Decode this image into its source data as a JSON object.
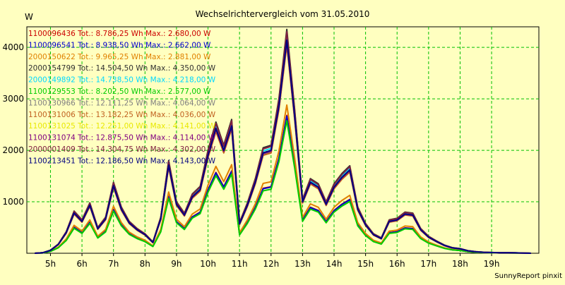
{
  "chart_data": {
    "type": "line",
    "title": "Wechselrichtervergleich vom 31.05.2010",
    "ylabel": "W",
    "xlabel": "",
    "footer": "SunnyReport pinxit",
    "ylim": [
      0,
      4400
    ],
    "yticks": [
      1000,
      2000,
      3000,
      4000
    ],
    "xlim": [
      4.25,
      20.5
    ],
    "xticks": [
      {
        "value": 5,
        "label": "5h"
      },
      {
        "value": 6,
        "label": "6h"
      },
      {
        "value": 7,
        "label": "7h"
      },
      {
        "value": 8,
        "label": "8h"
      },
      {
        "value": 9,
        "label": "9h"
      },
      {
        "value": 10,
        "label": "10h"
      },
      {
        "value": 11,
        "label": "11h"
      },
      {
        "value": 12,
        "label": "12h"
      },
      {
        "value": 13,
        "label": "13h"
      },
      {
        "value": 14,
        "label": "14h"
      },
      {
        "value": 15,
        "label": "15h"
      },
      {
        "value": 16,
        "label": "16h"
      },
      {
        "value": 17,
        "label": "17h"
      },
      {
        "value": 18,
        "label": "18h"
      },
      {
        "value": 19,
        "label": "19h"
      }
    ],
    "grid": true,
    "legend_position": "top-left",
    "x": [
      4.5,
      4.75,
      5,
      5.25,
      5.5,
      5.75,
      6,
      6.25,
      6.5,
      6.75,
      7,
      7.25,
      7.5,
      7.75,
      8,
      8.25,
      8.5,
      8.75,
      9,
      9.25,
      9.5,
      9.75,
      10,
      10.25,
      10.5,
      10.75,
      11,
      11.25,
      11.5,
      11.75,
      12,
      12.25,
      12.5,
      12.75,
      13,
      13.25,
      13.5,
      13.75,
      14,
      14.25,
      14.5,
      14.75,
      15,
      15.25,
      15.5,
      15.75,
      16,
      16.25,
      16.5,
      16.75,
      17,
      17.25,
      17.5,
      17.75,
      18,
      18.25,
      18.5,
      18.75,
      19,
      19.25,
      19.5,
      19.75,
      20,
      20.25
    ],
    "series": [
      {
        "name": "1100096436",
        "total": "8.786,25",
        "max": "2.680,00",
        "color": "#cc0000",
        "scale": 0.616
      },
      {
        "name": "1100096541",
        "total": "8.938,50",
        "max": "2.662,00",
        "color": "#0000cc",
        "scale": 0.612
      },
      {
        "name": "2000150622",
        "total": "9.965,25",
        "max": "2.881,00",
        "color": "#e08000",
        "scale": 0.662
      },
      {
        "name": "2000154799",
        "total": "14.504,50",
        "max": "4.350,00",
        "color": "#303030",
        "scale": 1.0
      },
      {
        "name": "2000149892",
        "total": "14.738,50",
        "max": "4.218,00",
        "color": "#00d8ff",
        "scale": 0.97
      },
      {
        "name": "1100129553",
        "total": "8.202,50",
        "max": "2.577,00",
        "color": "#00cc00",
        "scale": 0.592
      },
      {
        "name": "1100130966",
        "total": "12.111,25",
        "max": "4.064,00",
        "color": "#808080",
        "scale": 0.934
      },
      {
        "name": "1100131006",
        "total": "13.182,25",
        "max": "4.036,00",
        "color": "#c06020",
        "scale": 0.928
      },
      {
        "name": "1100131025",
        "total": "12.251,00",
        "max": "4.141,00",
        "color": "#e8e800",
        "scale": 0.952
      },
      {
        "name": "1100131074",
        "total": "12.875,50",
        "max": "4.114,00",
        "color": "#800080",
        "scale": 0.946
      },
      {
        "name": "2000001409",
        "total": "14.304,75",
        "max": "4.302,00",
        "color": "#802040",
        "scale": 0.989
      },
      {
        "name": "1100213451",
        "total": "12.186,50",
        "max": "4.143,00",
        "color": "#000080",
        "scale": 0.952
      }
    ],
    "base_profile": [
      0,
      10,
      60,
      180,
      420,
      820,
      650,
      980,
      500,
      700,
      1380,
      900,
      620,
      480,
      380,
      220,
      700,
      1800,
      1000,
      780,
      1150,
      1300,
      2000,
      2550,
      2100,
      2600,
      600,
      980,
      1450,
      2050,
      2100,
      3000,
      4350,
      2800,
      1050,
      1450,
      1350,
      1000,
      1350,
      1550,
      1700,
      900,
      580,
      380,
      300,
      650,
      680,
      800,
      780,
      480,
      330,
      240,
      160,
      110,
      90,
      50,
      30,
      20,
      15,
      10,
      10,
      8,
      5,
      0
    ],
    "legend_text": {
      "tot": "Tot.:",
      "wh_max": "Wh Max.:",
      "unit": "W"
    }
  }
}
